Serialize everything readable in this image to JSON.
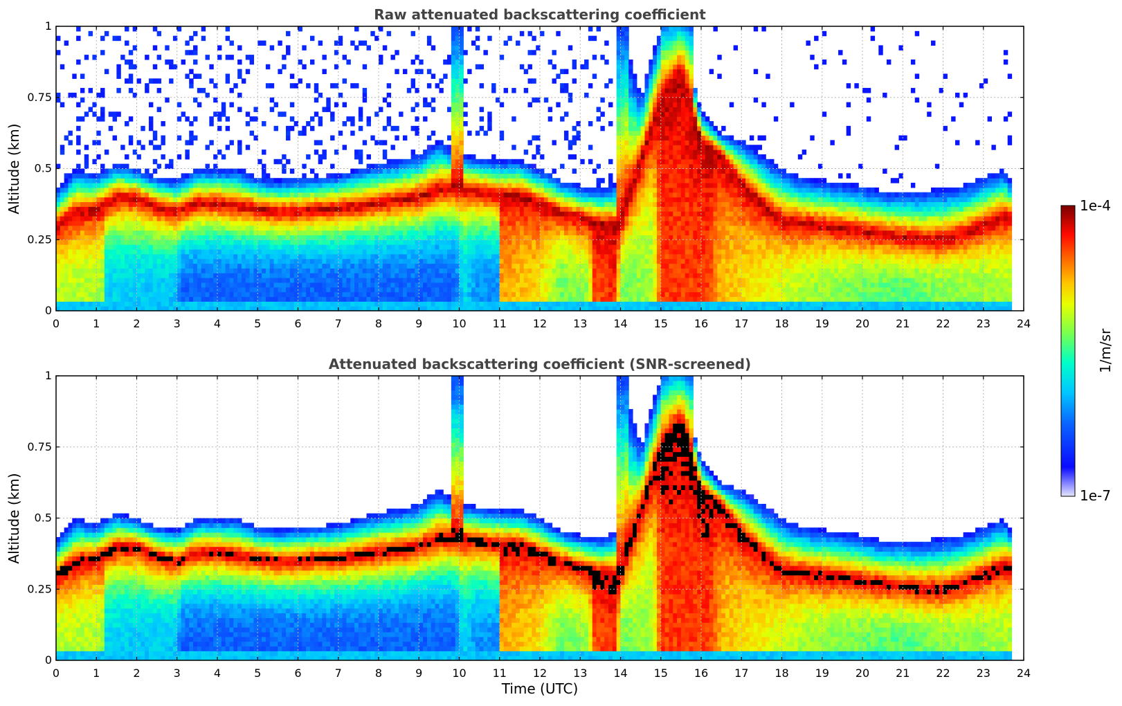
{
  "chart_data": [
    {
      "type": "heatmap",
      "title": "Raw attenuated backscattering coefficient",
      "xlabel": "",
      "ylabel": "Altitude (km)",
      "xlim": [
        0,
        24
      ],
      "ylim": [
        0,
        1
      ],
      "xticks": [
        0,
        1,
        2,
        3,
        4,
        5,
        6,
        7,
        8,
        9,
        10,
        11,
        12,
        13,
        14,
        15,
        16,
        17,
        18,
        19,
        20,
        21,
        22,
        23,
        24
      ],
      "yticks": [
        0,
        0.25,
        0.5,
        0.75,
        1
      ],
      "ytick_labels": [
        "0",
        "0.25",
        "0.5",
        "0.75",
        "1"
      ],
      "grid": true,
      "layer_top_km": [
        [
          0,
          0.42
        ],
        [
          0.5,
          0.5
        ],
        [
          1,
          0.48
        ],
        [
          1.5,
          0.52
        ],
        [
          2,
          0.5
        ],
        [
          2.5,
          0.47
        ],
        [
          3,
          0.46
        ],
        [
          3.5,
          0.5
        ],
        [
          4,
          0.5
        ],
        [
          4.5,
          0.5
        ],
        [
          5,
          0.47
        ],
        [
          5.5,
          0.46
        ],
        [
          6,
          0.47
        ],
        [
          6.5,
          0.47
        ],
        [
          7,
          0.48
        ],
        [
          7.5,
          0.5
        ],
        [
          8,
          0.52
        ],
        [
          8.5,
          0.53
        ],
        [
          9,
          0.55
        ],
        [
          9.5,
          0.6
        ],
        [
          10,
          0.55
        ],
        [
          10.5,
          0.54
        ],
        [
          11,
          0.53
        ],
        [
          11.5,
          0.53
        ],
        [
          12,
          0.5
        ],
        [
          12.5,
          0.46
        ],
        [
          13,
          0.44
        ],
        [
          13.5,
          0.43
        ],
        [
          13.9,
          0.45
        ],
        [
          14,
          1.0
        ],
        [
          14.5,
          0.75
        ],
        [
          15,
          1.0
        ],
        [
          15.5,
          1.0
        ],
        [
          16,
          0.7
        ],
        [
          16.5,
          0.62
        ],
        [
          17,
          0.6
        ],
        [
          17.5,
          0.55
        ],
        [
          18,
          0.5
        ],
        [
          18.5,
          0.47
        ],
        [
          19,
          0.46
        ],
        [
          19.5,
          0.45
        ],
        [
          20,
          0.44
        ],
        [
          20.5,
          0.42
        ],
        [
          21,
          0.42
        ],
        [
          21.5,
          0.42
        ],
        [
          22,
          0.43
        ],
        [
          22.5,
          0.44
        ],
        [
          23,
          0.47
        ],
        [
          23.5,
          0.5
        ],
        [
          23.7,
          0.45
        ]
      ],
      "layer_peak_km": [
        [
          0,
          0.3
        ],
        [
          0.5,
          0.35
        ],
        [
          1,
          0.36
        ],
        [
          1.5,
          0.4
        ],
        [
          2,
          0.4
        ],
        [
          2.5,
          0.37
        ],
        [
          3,
          0.35
        ],
        [
          3.5,
          0.38
        ],
        [
          4,
          0.38
        ],
        [
          4.5,
          0.37
        ],
        [
          5,
          0.36
        ],
        [
          5.5,
          0.35
        ],
        [
          6,
          0.35
        ],
        [
          6.5,
          0.36
        ],
        [
          7,
          0.36
        ],
        [
          7.5,
          0.37
        ],
        [
          8,
          0.38
        ],
        [
          8.5,
          0.39
        ],
        [
          9,
          0.4
        ],
        [
          9.5,
          0.43
        ],
        [
          10,
          0.43
        ],
        [
          10.5,
          0.42
        ],
        [
          11,
          0.41
        ],
        [
          11.5,
          0.41
        ],
        [
          12,
          0.38
        ],
        [
          12.5,
          0.35
        ],
        [
          13,
          0.33
        ],
        [
          13.5,
          0.31
        ],
        [
          14,
          0.3
        ],
        [
          15,
          0.75
        ],
        [
          15.5,
          0.85
        ],
        [
          16,
          0.6
        ],
        [
          16.5,
          0.55
        ],
        [
          17,
          0.45
        ],
        [
          17.5,
          0.38
        ],
        [
          18,
          0.32
        ],
        [
          18.5,
          0.31
        ],
        [
          19,
          0.3
        ],
        [
          19.5,
          0.29
        ],
        [
          20,
          0.28
        ],
        [
          20.5,
          0.27
        ],
        [
          21,
          0.26
        ],
        [
          21.5,
          0.25
        ],
        [
          22,
          0.25
        ],
        [
          22.5,
          0.27
        ],
        [
          23,
          0.3
        ],
        [
          23.5,
          0.33
        ]
      ],
      "near_surface_intensity": [
        [
          0,
          "yellow-green"
        ],
        [
          1.2,
          "cyan"
        ],
        [
          3,
          "blue"
        ],
        [
          10,
          "cyan"
        ],
        [
          11,
          "orange"
        ],
        [
          12,
          "yellow-orange"
        ],
        [
          13.3,
          "red"
        ],
        [
          14,
          "yellow-green"
        ],
        [
          15,
          "red"
        ],
        [
          16.2,
          "orange-red"
        ],
        [
          17.5,
          "yellow"
        ],
        [
          19,
          "yellow-green"
        ],
        [
          21,
          "cyan-green"
        ],
        [
          23,
          "yellow-green"
        ],
        [
          23.7,
          "none"
        ]
      ]
    },
    {
      "type": "heatmap",
      "title": "Attenuated backscattering coefficient (SNR-screened)",
      "xlabel": "Time (UTC)",
      "ylabel": "Altitude (km)",
      "xlim": [
        0,
        24
      ],
      "ylim": [
        0,
        1
      ],
      "xticks": [
        0,
        1,
        2,
        3,
        4,
        5,
        6,
        7,
        8,
        9,
        10,
        11,
        12,
        13,
        14,
        15,
        16,
        17,
        18,
        19,
        20,
        21,
        22,
        23,
        24
      ],
      "yticks": [
        0,
        0.25,
        0.5,
        0.75,
        1
      ],
      "ytick_labels": [
        "0",
        "0.25",
        "0.5",
        "0.75",
        "1"
      ],
      "grid": true,
      "note": "Saturated layer core rendered in black; noise above layer removed"
    }
  ],
  "colorbar": {
    "label": "1/m/sr",
    "max_label": "1e-4",
    "min_label": "1e-7",
    "colormap": [
      "#e8e8ff",
      "#0000ff",
      "#0064ff",
      "#00c8ff",
      "#00ffc8",
      "#64ff64",
      "#c8ff00",
      "#ffff00",
      "#ffc800",
      "#ff6400",
      "#ff0000",
      "#8b0000"
    ]
  }
}
